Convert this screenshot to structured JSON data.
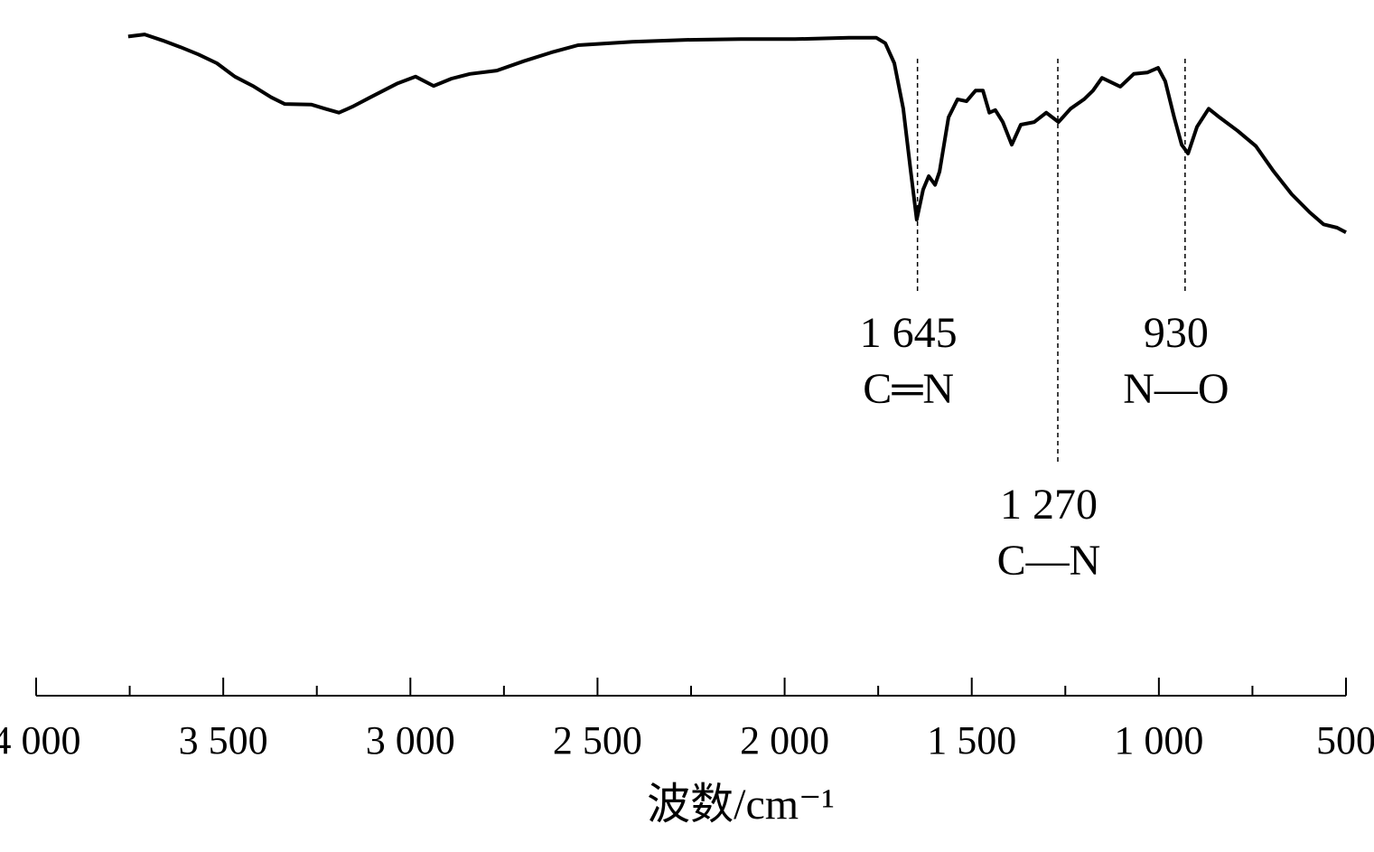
{
  "chart_data": {
    "type": "line",
    "x_label": "波数/cm⁻¹",
    "xlim": [
      4000,
      500
    ],
    "ylim": [
      0,
      100
    ],
    "xticks": [
      {
        "value": 4000,
        "label": "4 000"
      },
      {
        "value": 3500,
        "label": "3 500"
      },
      {
        "value": 3000,
        "label": "3 000"
      },
      {
        "value": 2500,
        "label": "2 500"
      },
      {
        "value": 2000,
        "label": "2 000"
      },
      {
        "value": 1500,
        "label": "1 500"
      },
      {
        "value": 1000,
        "label": "1 000"
      },
      500
    ],
    "xminorticks": [
      3750,
      3250,
      2750,
      2250,
      1750,
      1250,
      750
    ],
    "color": "#000000",
    "x": [
      3754,
      3710,
      3662,
      3614,
      3566,
      3517,
      3469,
      3421,
      3372,
      3336,
      3264,
      3228,
      3191,
      3155,
      3107,
      3034,
      2986,
      2938,
      2890,
      2841,
      2769,
      2697,
      2624,
      2552,
      2407,
      2262,
      2117,
      1972,
      1828,
      1755,
      1731,
      1707,
      1683,
      1663,
      1647,
      1630,
      1615,
      1598,
      1586,
      1562,
      1538,
      1514,
      1490,
      1470,
      1453,
      1437,
      1417,
      1393,
      1369,
      1333,
      1301,
      1268,
      1236,
      1200,
      1176,
      1152,
      1103,
      1067,
      1031,
      1002,
      983,
      959,
      939,
      922,
      898,
      867,
      838,
      790,
      741,
      693,
      645,
      597,
      560,
      524,
      500
    ],
    "values": [
      98.6,
      98.9,
      98.0,
      97.0,
      95.9,
      94.6,
      92.6,
      91.2,
      89.5,
      88.5,
      88.4,
      87.8,
      87.2,
      88.1,
      89.5,
      91.6,
      92.6,
      91.2,
      92.3,
      93.0,
      93.5,
      94.9,
      96.2,
      97.3,
      97.8,
      98.1,
      98.2,
      98.2,
      98.4,
      98.4,
      97.6,
      94.6,
      87.8,
      78.4,
      71.2,
      75.7,
      77.7,
      76.4,
      78.4,
      86.5,
      89.2,
      88.9,
      90.5,
      90.5,
      87.2,
      87.6,
      85.8,
      82.4,
      85.4,
      85.8,
      87.2,
      85.8,
      87.8,
      89.2,
      90.5,
      92.4,
      91.1,
      93.0,
      93.2,
      93.9,
      91.9,
      86.5,
      82.4,
      81.1,
      85.1,
      87.8,
      86.5,
      84.5,
      82.2,
      78.4,
      75.0,
      72.3,
      70.5,
      70.0,
      69.3
    ],
    "annotations": [
      {
        "x": 1645,
        "label": "1 645",
        "bond": "C═N"
      },
      {
        "x": 1270,
        "label": "1 270",
        "bond": "C—N"
      },
      {
        "x": 930,
        "label": "930",
        "bond": "N—O"
      }
    ]
  }
}
